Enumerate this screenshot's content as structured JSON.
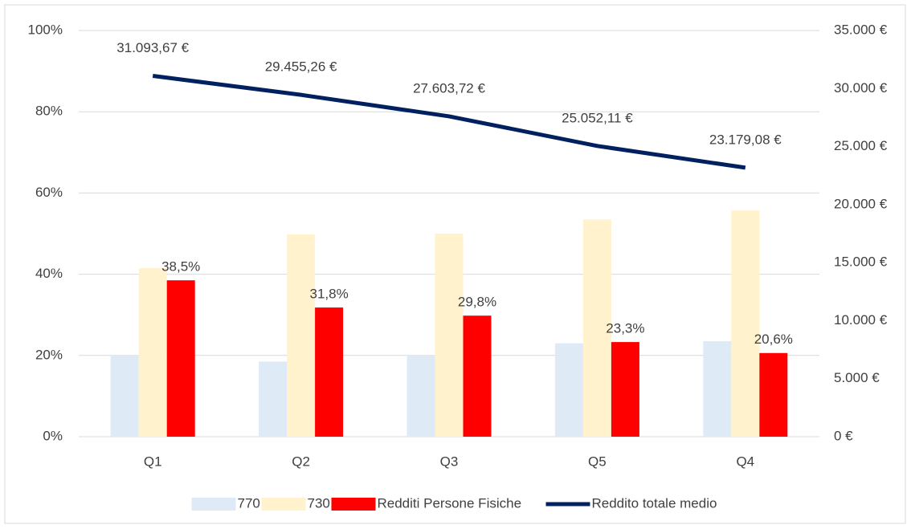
{
  "chart_data": {
    "type": "bar",
    "categories": [
      "Q1",
      "Q2",
      "Q3",
      "Q5",
      "Q4"
    ],
    "series": [
      {
        "name": "770",
        "color": "#deebf7",
        "values": [
          20,
          18.5,
          20,
          23,
          23.5
        ]
      },
      {
        "name": "730",
        "color": "#fff2cc",
        "values": [
          41.5,
          49.8,
          50,
          53.5,
          55.7
        ]
      },
      {
        "name": "Redditi Persone Fisiche",
        "color": "#ff0000",
        "values": [
          38.5,
          31.8,
          29.8,
          23.3,
          20.6
        ],
        "value_labels": [
          "38,5%",
          "31,8%",
          "29,8%",
          "23,3%",
          "20,6%"
        ]
      },
      {
        "name": "Reddito totale medio",
        "color": "#002060",
        "type": "line",
        "axis": "y2",
        "values": [
          31093.67,
          29455.26,
          27603.72,
          25052.11,
          23179.08
        ],
        "value_labels": [
          "31.093,67 €",
          "29.455,26 €",
          "27.603,72 €",
          "25.052,11 €",
          "23.179,08 €"
        ]
      }
    ],
    "ylim": [
      0,
      100
    ],
    "yticks": [
      {
        "value": 0,
        "label": "0%"
      },
      {
        "value": 20,
        "label": "20%"
      },
      {
        "value": 40,
        "label": "40%"
      },
      {
        "value": 60,
        "label": "60%"
      },
      {
        "value": 80,
        "label": "80%"
      },
      {
        "value": 100,
        "label": "100%"
      }
    ],
    "y2lim": [
      0,
      35000
    ],
    "y2ticks": [
      {
        "value": 0,
        "label": "0 €"
      },
      {
        "value": 5000,
        "label": "5.000 €"
      },
      {
        "value": 10000,
        "label": "10.000 €"
      },
      {
        "value": 15000,
        "label": "15.000 €"
      },
      {
        "value": 20000,
        "label": "20.000 €"
      },
      {
        "value": 25000,
        "label": "25.000 €"
      },
      {
        "value": 30000,
        "label": "30.000 €"
      },
      {
        "value": 35000,
        "label": "35.000 €"
      }
    ],
    "grid": true,
    "legend": "bottom"
  }
}
